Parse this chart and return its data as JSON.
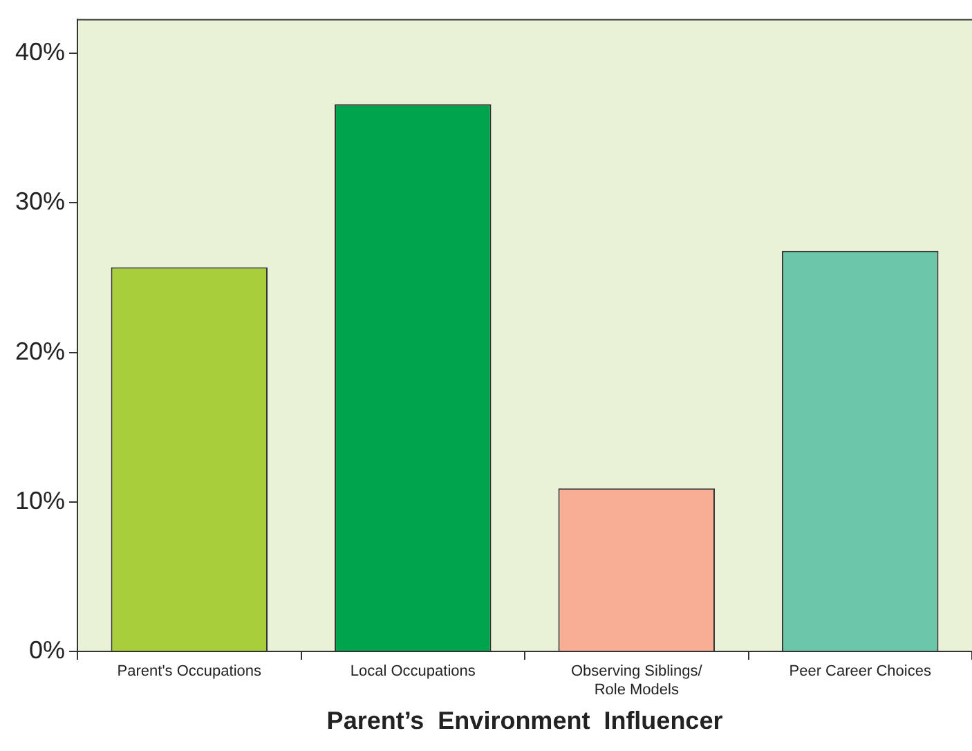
{
  "chart_data": {
    "type": "bar",
    "xlabel": "Parent’s  Environment  Influencer",
    "categories": [
      "Parent's Occupations",
      "Local Occupations",
      "Observing Siblings/ Role Models",
      "Peer Career Choices"
    ],
    "values": [
      25.7,
      36.6,
      10.9,
      26.8
    ],
    "colors": [
      "#a8cf3b",
      "#00a44c",
      "#f7ae94",
      "#6cc6a9"
    ],
    "ylim": [
      0,
      42.3
    ],
    "yticks": [
      {
        "value": 0,
        "label": "0%"
      },
      {
        "value": 10,
        "label": "10%"
      },
      {
        "value": 20,
        "label": "20%"
      },
      {
        "value": 30,
        "label": "30%"
      },
      {
        "value": 40,
        "label": "40%"
      }
    ],
    "grid": false,
    "legend": false
  }
}
